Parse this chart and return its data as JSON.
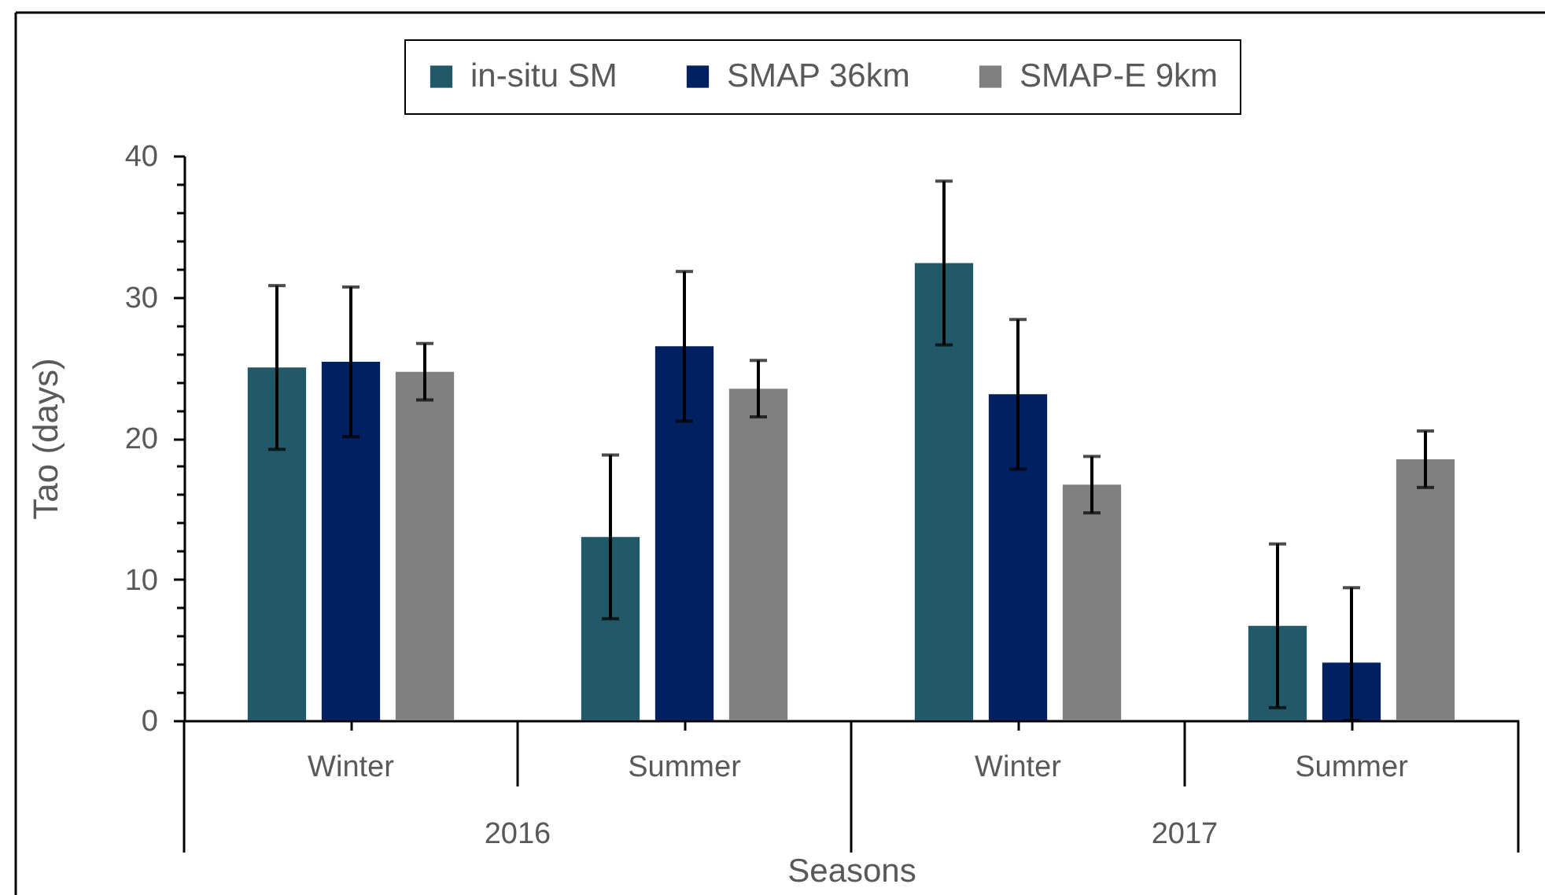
{
  "chart_data": {
    "type": "bar",
    "xlabel": "Seasons",
    "ylabel": "Tao (days)",
    "categories": [
      "Winter",
      "Summer",
      "Winter",
      "Summer"
    ],
    "series": [
      {
        "name": "in-situ SM",
        "color": "#215968",
        "values": [
          25.0,
          13.0,
          32.4,
          6.7
        ],
        "errors": [
          5.8,
          5.8,
          5.8,
          5.8
        ]
      },
      {
        "name": "SMAP 36km",
        "color": "#002060",
        "values": [
          25.4,
          26.5,
          23.1,
          4.1
        ],
        "errors": [
          5.3,
          5.3,
          5.3,
          [
            0,
            9.4
          ]
        ]
      },
      {
        "name": "SMAP-E 9km",
        "color": "#808080",
        "values": [
          24.7,
          23.5,
          16.7,
          18.5
        ],
        "errors": [
          2.0,
          2.0,
          2.0,
          2.0
        ]
      }
    ],
    "ylim": [
      0,
      40
    ],
    "yticks": [
      0,
      {
        "value": 2,
        "label": null
      },
      {
        "value": 4,
        "label": null
      },
      {
        "value": 6,
        "label": null
      },
      {
        "value": 8,
        "label": null
      },
      10,
      {
        "value": 12,
        "label": null
      },
      {
        "value": 14,
        "label": null
      },
      {
        "value": 16,
        "label": null
      },
      {
        "value": 18,
        "label": null
      },
      20,
      {
        "value": 22,
        "label": null
      },
      {
        "value": 24,
        "label": null
      },
      {
        "value": 26,
        "label": null
      },
      {
        "value": 28,
        "label": null
      },
      30,
      {
        "value": 32,
        "label": null
      },
      {
        "value": 34,
        "label": null
      },
      {
        "value": 36,
        "label": null
      },
      {
        "value": 38,
        "label": null
      },
      40
    ],
    "legend": "top",
    "annotations": [
      "2016",
      "2017"
    ]
  }
}
